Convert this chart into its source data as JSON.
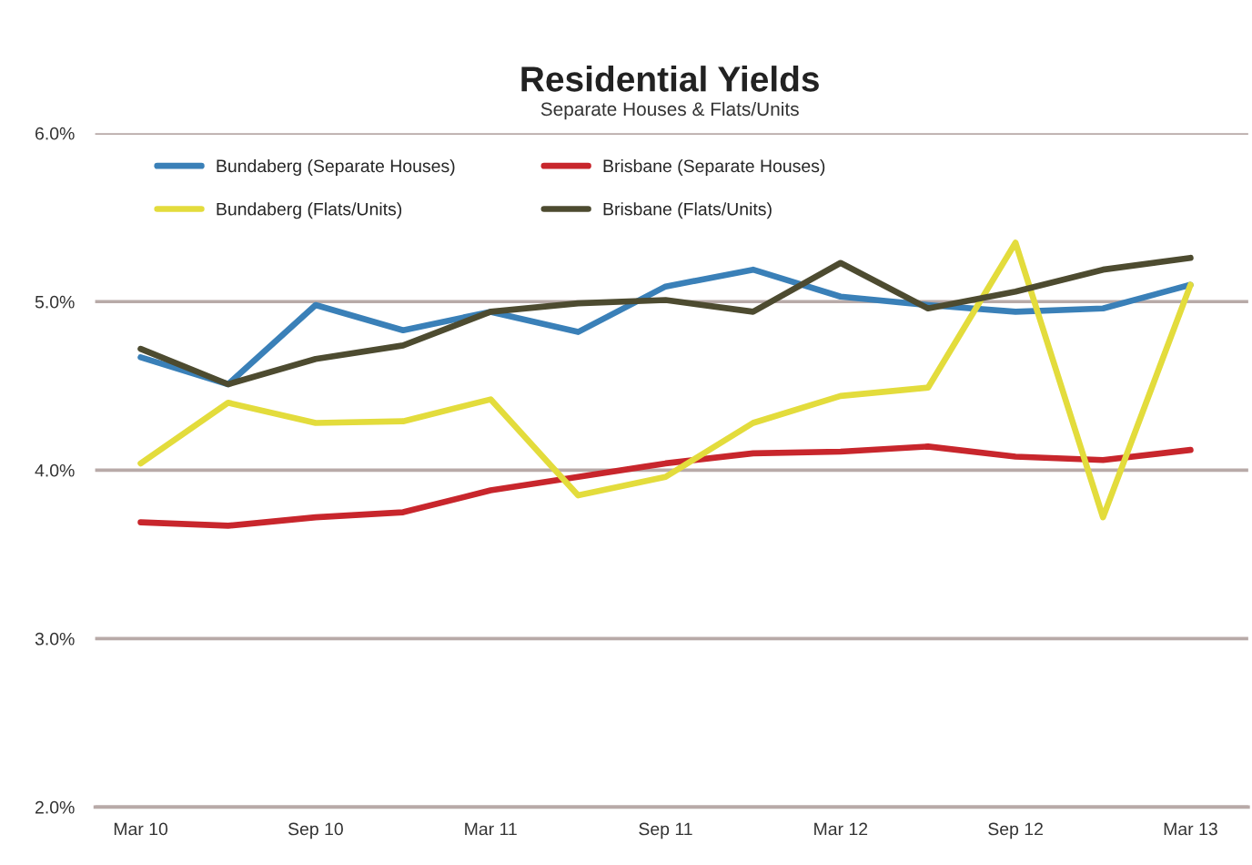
{
  "chart_data": {
    "type": "line",
    "title": "Residential Yields",
    "subtitle": "Separate Houses & Flats/Units",
    "categories": [
      "Mar 10",
      null,
      "Sep 10",
      null,
      "Mar 11",
      null,
      "Sep 11",
      null,
      "Mar 12",
      null,
      "Sep 12",
      null,
      "Mar 13"
    ],
    "series": [
      {
        "name": "Bundaberg (Separate Houses)",
        "color": "#3a80b8",
        "values": [
          4.67,
          4.51,
          4.98,
          4.83,
          4.94,
          4.82,
          5.09,
          5.19,
          5.03,
          4.98,
          4.94,
          4.96,
          5.1
        ]
      },
      {
        "name": "Brisbane (Separate Houses)",
        "color": "#c8262c",
        "values": [
          3.69,
          3.67,
          3.72,
          3.75,
          3.88,
          3.96,
          4.04,
          4.1,
          4.11,
          4.14,
          4.08,
          4.06,
          4.12
        ]
      },
      {
        "name": "Bundaberg (Flats/Units)",
        "color": "#e3dc3c",
        "values": [
          4.04,
          4.4,
          4.28,
          4.29,
          4.42,
          3.85,
          3.96,
          4.28,
          4.44,
          4.49,
          5.35,
          3.72,
          5.1
        ]
      },
      {
        "name": "Brisbane (Flats/Units)",
        "color": "#4d4b30",
        "values": [
          4.72,
          4.51,
          4.66,
          4.74,
          4.94,
          4.99,
          5.01,
          4.94,
          5.23,
          4.96,
          5.06,
          5.19,
          5.26
        ]
      }
    ],
    "ylim": [
      2.0,
      6.0
    ],
    "yticks": [
      {
        "value": 2.0,
        "label": "2.0%"
      },
      {
        "value": 3.0,
        "label": "3.0%"
      },
      {
        "value": 4.0,
        "label": "4.0%"
      },
      {
        "value": 5.0,
        "label": "5.0%"
      },
      {
        "value": 6.0,
        "label": "6.0%"
      }
    ],
    "grid": "y",
    "legend": "top left",
    "marker": "none",
    "line_style": "solid"
  }
}
